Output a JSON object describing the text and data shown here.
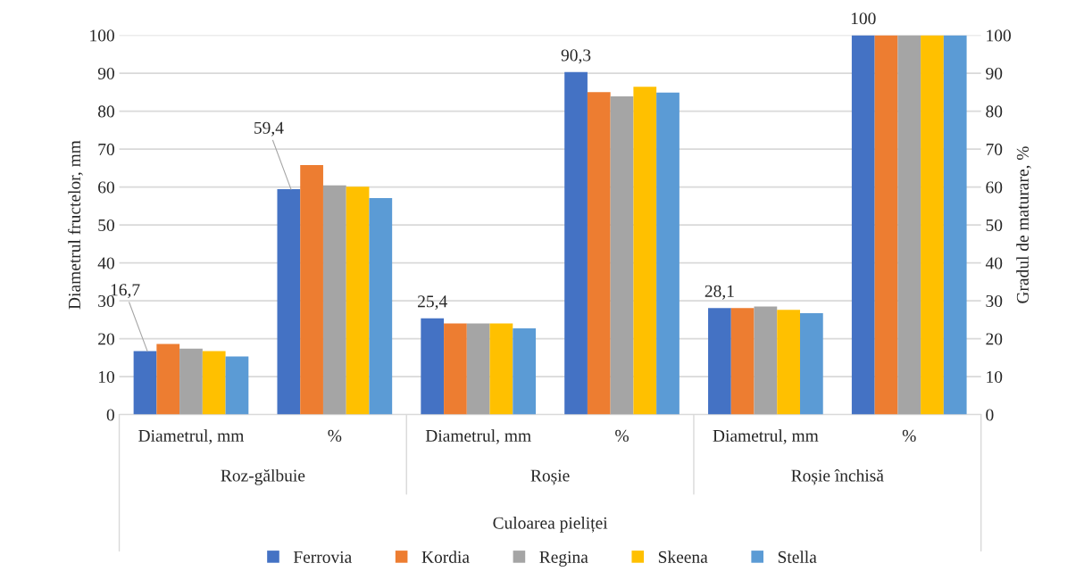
{
  "chart_data": {
    "type": "bar",
    "categories": [
      "Diametrul, mm",
      "%",
      "Diametrul, mm",
      "%",
      "Diametrul, mm",
      "%"
    ],
    "annotations": [
      "Roz-gălbuie",
      "Roșie",
      "Roșie închisă"
    ],
    "xlabel": "Culoarea pieliței",
    "ylabel": "Diametrul fructelor, mm",
    "y2label": "Gradul de maturare, %",
    "series": [
      {
        "name": "Ferrovia",
        "color": "#4472c4",
        "values": [
          16.7,
          59.4,
          25.4,
          90.3,
          28.1,
          100
        ],
        "value_labels": [
          "16,7",
          "59,4",
          "25,4",
          "90,3",
          "28,1",
          "100"
        ]
      },
      {
        "name": "Kordia",
        "color": "#ed7d31",
        "values": [
          18.6,
          65.8,
          24.0,
          85.0,
          28.1,
          100
        ]
      },
      {
        "name": "Regina",
        "color": "#a5a5a5",
        "values": [
          17.4,
          60.4,
          24.0,
          83.9,
          28.5,
          100
        ]
      },
      {
        "name": "Skeena",
        "color": "#ffc000",
        "values": [
          16.7,
          60.1,
          24.0,
          86.4,
          27.6,
          100
        ]
      },
      {
        "name": "Stella",
        "color": "#5b9bd5",
        "values": [
          15.3,
          57.1,
          22.7,
          84.9,
          26.7,
          100
        ]
      }
    ],
    "ylim": [
      0,
      100
    ],
    "yticks": [
      0,
      10,
      20,
      30,
      40,
      50,
      60,
      70,
      80,
      90,
      100
    ],
    "y2lim": [
      0,
      100
    ],
    "y2ticks": [
      0,
      10,
      20,
      30,
      40,
      50,
      60,
      70,
      80,
      90,
      100
    ],
    "grid": "y",
    "legend": "bottom"
  }
}
